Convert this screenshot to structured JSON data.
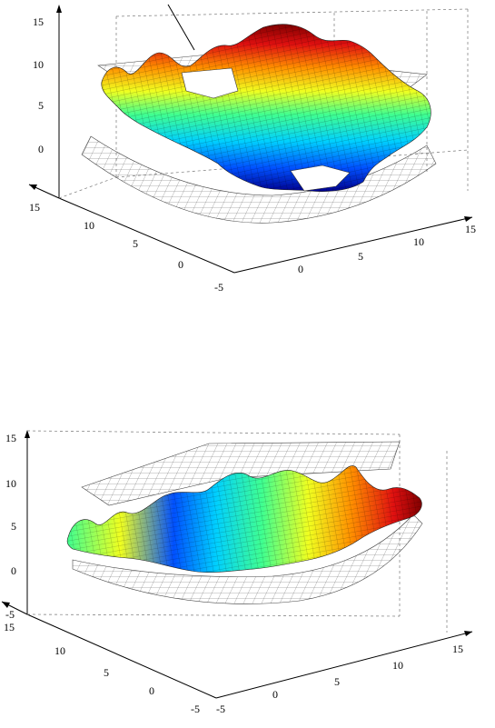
{
  "chart_data": [
    {
      "type": "surface",
      "title": "",
      "xlabel": "",
      "ylabel": "",
      "zlabel": "",
      "axes": {
        "x": {
          "range": [
            -5,
            15
          ],
          "ticks": [
            "-5",
            "0",
            "5",
            "10",
            "15"
          ]
        },
        "y": {
          "range": [
            -5,
            15
          ],
          "ticks": [
            "0",
            "5",
            "10",
            "15"
          ]
        },
        "z": {
          "range": [
            -5,
            15
          ],
          "ticks": [
            "0",
            "5",
            "10",
            "15"
          ]
        }
      },
      "grid": true,
      "colormap": "jet",
      "colormap_stops": [
        "#00008f",
        "#0050ff",
        "#00d0ff",
        "#40ff90",
        "#f0ff20",
        "#ff9000",
        "#e01010",
        "#800000"
      ],
      "surfaces": [
        {
          "style": "colored-shaded",
          "z_range_approx": [
            -3,
            13
          ]
        },
        {
          "style": "wireframe-plane",
          "z_approx": 9
        },
        {
          "style": "wireframe-bowl",
          "z_range_approx": [
            -5,
            1
          ]
        }
      ],
      "annotation_leader": true
    },
    {
      "type": "surface",
      "title": "",
      "xlabel": "",
      "ylabel": "",
      "zlabel": "",
      "axes": {
        "x": {
          "range": [
            -5,
            15
          ],
          "ticks": [
            "-5",
            "0",
            "5",
            "10",
            "15"
          ]
        },
        "y": {
          "range": [
            -5,
            15
          ],
          "ticks": [
            "-5",
            "0",
            "5",
            "10",
            "15"
          ]
        },
        "z": {
          "range": [
            -5,
            15
          ],
          "ticks": [
            "-5",
            "0",
            "5",
            "10",
            "15"
          ]
        }
      },
      "grid": true,
      "colormap": "jet",
      "colormap_stops": [
        "#00008f",
        "#0050ff",
        "#00d0ff",
        "#40ff90",
        "#f0ff20",
        "#ff9000",
        "#e01010",
        "#800000"
      ],
      "surfaces": [
        {
          "style": "colored-shaded",
          "z_range_approx": [
            0,
            10
          ]
        },
        {
          "style": "wireframe-plane",
          "z_approx": 10
        },
        {
          "style": "wireframe-bowl",
          "z_range_approx": [
            -5,
            0
          ]
        }
      ],
      "annotation_leader": false
    }
  ]
}
